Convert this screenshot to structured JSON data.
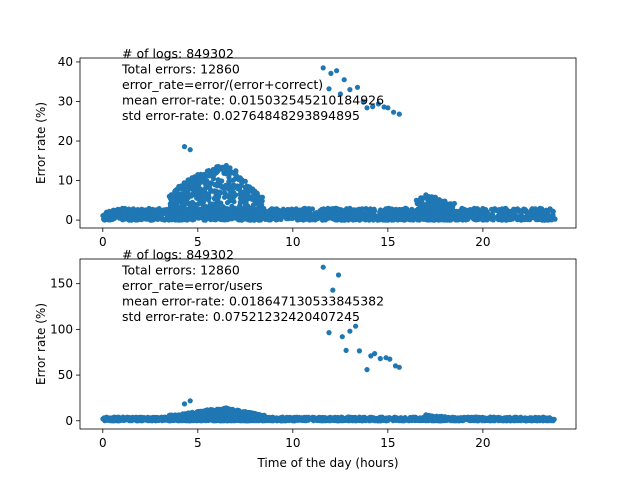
{
  "chart_data": [
    {
      "type": "scatter",
      "ylabel": "Error rate (%)",
      "xlabel": "",
      "xlim": [
        -1.2,
        24.9
      ],
      "ylim": [
        -2,
        41
      ],
      "xticks": [
        0,
        5,
        10,
        15,
        20
      ],
      "yticks": [
        0,
        10,
        20,
        30,
        40
      ],
      "annotation": [
        "# of logs: 849302",
        "Total errors: 12860",
        "error_rate=error/(error+correct)",
        "mean error-rate: 0.015032545210184926",
        "std error-rate: 0.02764848293894895"
      ],
      "outliers": [
        [
          4.3,
          18.6
        ],
        [
          4.6,
          17.8
        ],
        [
          11.6,
          38.5
        ],
        [
          11.9,
          33.2
        ],
        [
          12.0,
          37.1
        ],
        [
          12.3,
          37.8
        ],
        [
          12.5,
          31.9
        ],
        [
          12.7,
          35.5
        ],
        [
          13.0,
          33.0
        ],
        [
          13.4,
          33.6
        ],
        [
          13.7,
          30.0
        ],
        [
          13.9,
          28.4
        ],
        [
          14.2,
          28.7
        ],
        [
          14.5,
          29.4
        ],
        [
          14.8,
          28.6
        ],
        [
          15.0,
          28.4
        ],
        [
          15.3,
          27.3
        ],
        [
          15.6,
          26.8
        ]
      ],
      "hump_peaks": [
        [
          3.5,
          6.0
        ],
        [
          4.0,
          8.5
        ],
        [
          4.5,
          10.2
        ],
        [
          5.0,
          11.5
        ],
        [
          5.5,
          12.4
        ],
        [
          6.0,
          13.5
        ],
        [
          6.5,
          13.8
        ],
        [
          7.0,
          12.5
        ],
        [
          7.5,
          9.8
        ],
        [
          8.0,
          7.3
        ],
        [
          8.4,
          5.8
        ],
        [
          16.5,
          5.0
        ],
        [
          17.0,
          6.4
        ],
        [
          17.5,
          5.8
        ],
        [
          18.0,
          4.8
        ],
        [
          18.5,
          4.2
        ]
      ],
      "baseline_band": [
        0,
        3
      ]
    },
    {
      "type": "scatter",
      "ylabel": "Error rate (%)",
      "xlabel": "Time of the day (hours)",
      "xlim": [
        -1.2,
        24.9
      ],
      "ylim": [
        -9,
        177
      ],
      "xticks": [
        0,
        5,
        10,
        15,
        20
      ],
      "yticks": [
        0,
        50,
        100,
        150
      ],
      "annotation": [
        "# of logs: 849302",
        "Total errors: 12860",
        "error_rate=error/users",
        "mean error-rate: 0.018647130533845382",
        "std error-rate: 0.07521232420407245"
      ],
      "outliers": [
        [
          4.3,
          18.5
        ],
        [
          4.6,
          21.8
        ],
        [
          11.6,
          168.0
        ],
        [
          11.9,
          96.5
        ],
        [
          12.1,
          143.0
        ],
        [
          12.4,
          159.5
        ],
        [
          12.6,
          92.0
        ],
        [
          12.8,
          77.0
        ],
        [
          13.0,
          98.0
        ],
        [
          13.3,
          103.5
        ],
        [
          13.5,
          76.5
        ],
        [
          13.9,
          56.0
        ],
        [
          14.1,
          71.0
        ],
        [
          14.3,
          73.5
        ],
        [
          14.6,
          68.0
        ],
        [
          14.9,
          69.0
        ],
        [
          15.1,
          67.5
        ],
        [
          15.4,
          60.0
        ],
        [
          15.6,
          58.5
        ]
      ],
      "hump_peaks": [
        [
          3.5,
          6.0
        ],
        [
          4.5,
          8.5
        ],
        [
          5.5,
          12.0
        ],
        [
          6.5,
          14.0
        ],
        [
          7.5,
          10.0
        ],
        [
          8.5,
          6.0
        ],
        [
          17.0,
          6.5
        ],
        [
          18.0,
          4.5
        ]
      ],
      "baseline_band": [
        0,
        4
      ]
    }
  ],
  "colors": {
    "points": "#1f77b4",
    "axes": "#000000",
    "background": "#ffffff"
  }
}
